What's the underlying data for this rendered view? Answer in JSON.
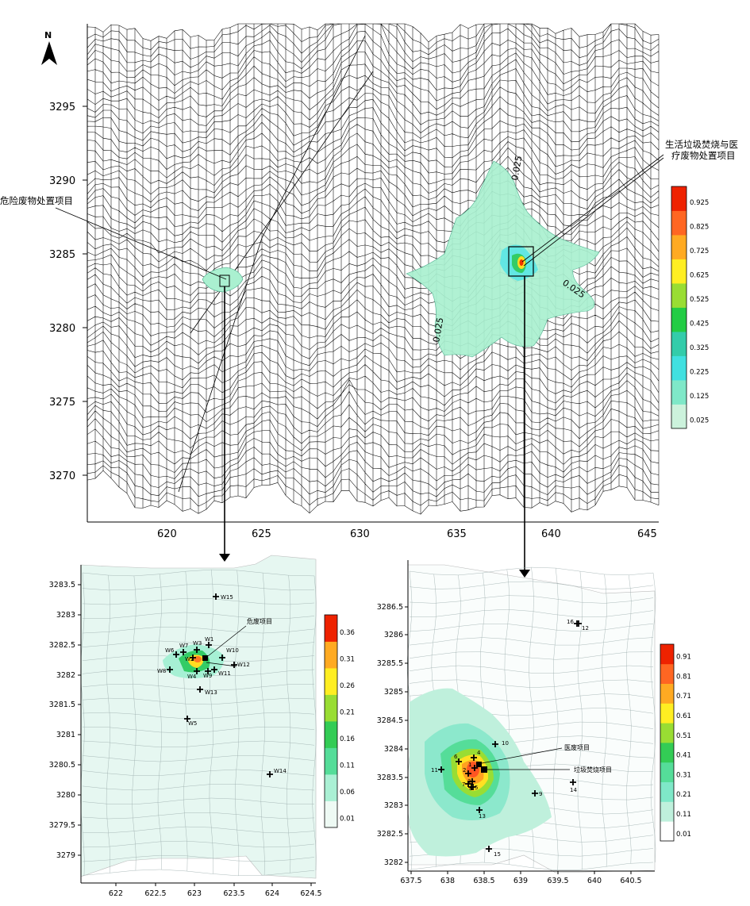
{
  "north": {
    "label": "N"
  },
  "main": {
    "y_ticks": [
      "3295",
      "3290",
      "3285",
      "3280",
      "3275",
      "3270"
    ],
    "x_ticks": [
      "620",
      "625",
      "630",
      "635",
      "640",
      "645"
    ],
    "contour_labels": [
      "0.025",
      "0.025",
      "0.025"
    ],
    "annotations": {
      "hazard_project": "危险废物处置项目",
      "incinerator_line1": "生活垃圾焚烧与医",
      "incinerator_line2": "疗废物处置项目"
    },
    "colorbar": [
      "0.925",
      "0.825",
      "0.725",
      "0.625",
      "0.525",
      "0.425",
      "0.325",
      "0.225",
      "0.125",
      "0.025"
    ]
  },
  "inset_left": {
    "y_ticks": [
      "3283.5",
      "3283",
      "3282.5",
      "3282",
      "3281.5",
      "3281",
      "3280.5",
      "3280",
      "3279.5",
      "3279"
    ],
    "x_ticks": [
      "622",
      "622.5",
      "623",
      "623.5",
      "624",
      "624.5"
    ],
    "colorbar": [
      "0.36",
      "0.31",
      "0.26",
      "0.21",
      "0.16",
      "0.11",
      "0.06",
      "0.01"
    ],
    "project_label": "危废项目",
    "receptors": [
      "W1",
      "W2",
      "W3",
      "W4",
      "W5",
      "W6",
      "W7",
      "W8",
      "W9",
      "W10",
      "W11",
      "W12",
      "W13",
      "W14",
      "W15"
    ]
  },
  "inset_right": {
    "y_ticks": [
      "3286.5",
      "3286",
      "3285.5",
      "3285",
      "3284.5",
      "3284",
      "3283.5",
      "3283",
      "3282.5",
      "3282"
    ],
    "x_ticks": [
      "637.5",
      "638",
      "638.5",
      "639",
      "639.5",
      "640",
      "640.5"
    ],
    "colorbar": [
      "0.91",
      "0.81",
      "0.71",
      "0.61",
      "0.51",
      "0.41",
      "0.31",
      "0.21",
      "0.11",
      "0.01"
    ],
    "medical_label": "医废项目",
    "incinerator_label": "垃圾焚烧项目",
    "receptors": [
      "1",
      "2",
      "3",
      "4",
      "5",
      "6",
      "7",
      "8",
      "9",
      "10",
      "11",
      "12",
      "13",
      "14",
      "15",
      "16"
    ]
  },
  "colors": {
    "scale": [
      "#ccf2dc",
      "#7fe8c8",
      "#40e0e0",
      "#33ccaa",
      "#22cc44",
      "#99dd33",
      "#ffee22",
      "#ffaa22",
      "#ff6622",
      "#ee2200"
    ]
  }
}
